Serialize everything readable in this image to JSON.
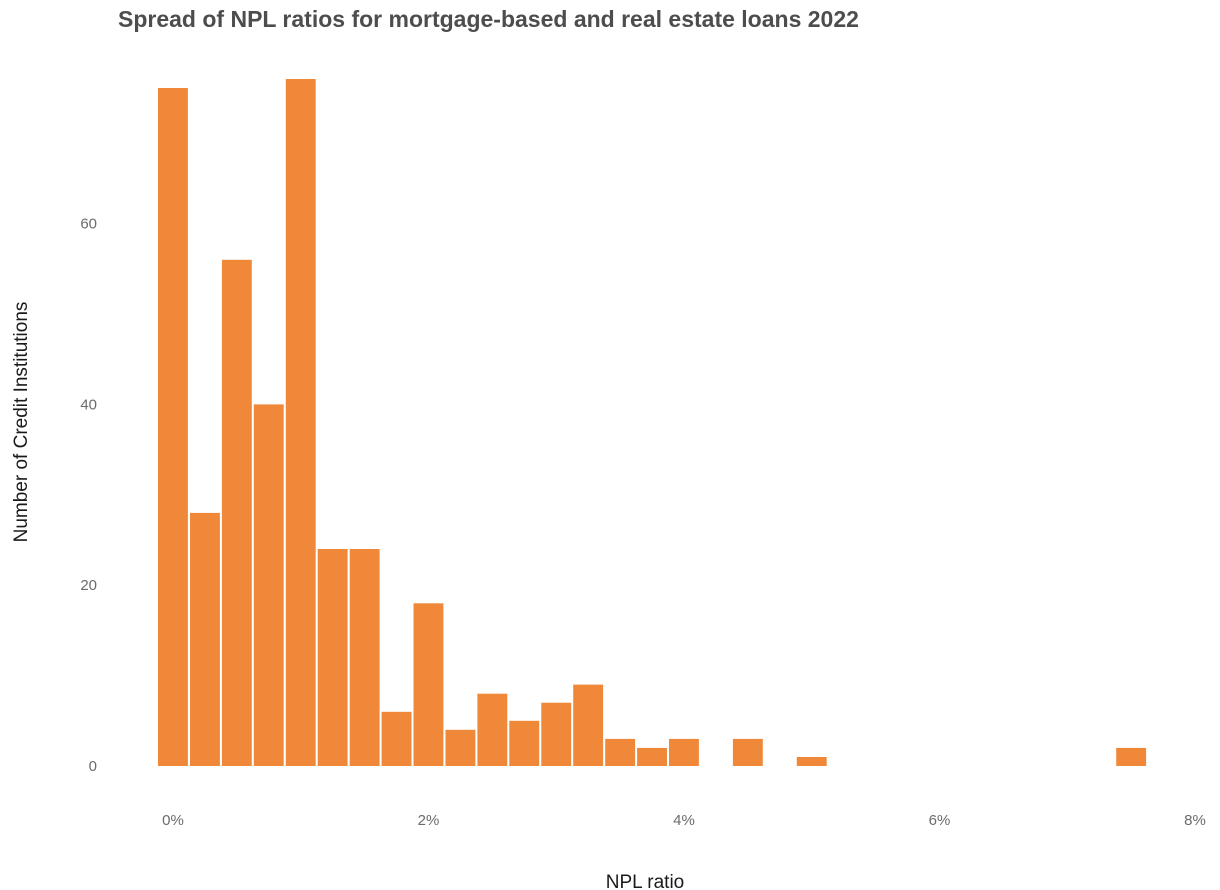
{
  "chart_data": {
    "type": "bar",
    "title": "Spread of NPL ratios for mortgage-based and real estate loans 2022",
    "xlabel": "NPL ratio",
    "ylabel": "Number of Credit Institutions",
    "bar_color": "#f0883a",
    "bin_width": 0.25,
    "x_ticks": [
      {
        "value": 0,
        "label": "0%"
      },
      {
        "value": 2,
        "label": "2%"
      },
      {
        "value": 4,
        "label": "4%"
      },
      {
        "value": 6,
        "label": "6%"
      },
      {
        "value": 8,
        "label": "8%"
      }
    ],
    "y_ticks": [
      {
        "value": 0,
        "label": "0"
      },
      {
        "value": 20,
        "label": "20"
      },
      {
        "value": 40,
        "label": "40"
      },
      {
        "value": 60,
        "label": "60"
      }
    ],
    "xlim": [
      -0.125,
      8.0
    ],
    "ylim": [
      0,
      75
    ],
    "grid": false,
    "bins": [
      {
        "x": 0.0,
        "count": 75
      },
      {
        "x": 0.25,
        "count": 28
      },
      {
        "x": 0.5,
        "count": 56
      },
      {
        "x": 0.75,
        "count": 40
      },
      {
        "x": 1.0,
        "count": 76
      },
      {
        "x": 1.25,
        "count": 24
      },
      {
        "x": 1.5,
        "count": 24
      },
      {
        "x": 1.75,
        "count": 6
      },
      {
        "x": 2.0,
        "count": 18
      },
      {
        "x": 2.25,
        "count": 4
      },
      {
        "x": 2.5,
        "count": 8
      },
      {
        "x": 2.75,
        "count": 5
      },
      {
        "x": 3.0,
        "count": 7
      },
      {
        "x": 3.25,
        "count": 9
      },
      {
        "x": 3.5,
        "count": 3
      },
      {
        "x": 3.75,
        "count": 2
      },
      {
        "x": 4.0,
        "count": 3
      },
      {
        "x": 4.25,
        "count": 0
      },
      {
        "x": 4.5,
        "count": 3
      },
      {
        "x": 4.75,
        "count": 0
      },
      {
        "x": 5.0,
        "count": 1
      },
      {
        "x": 7.5,
        "count": 2
      }
    ]
  }
}
